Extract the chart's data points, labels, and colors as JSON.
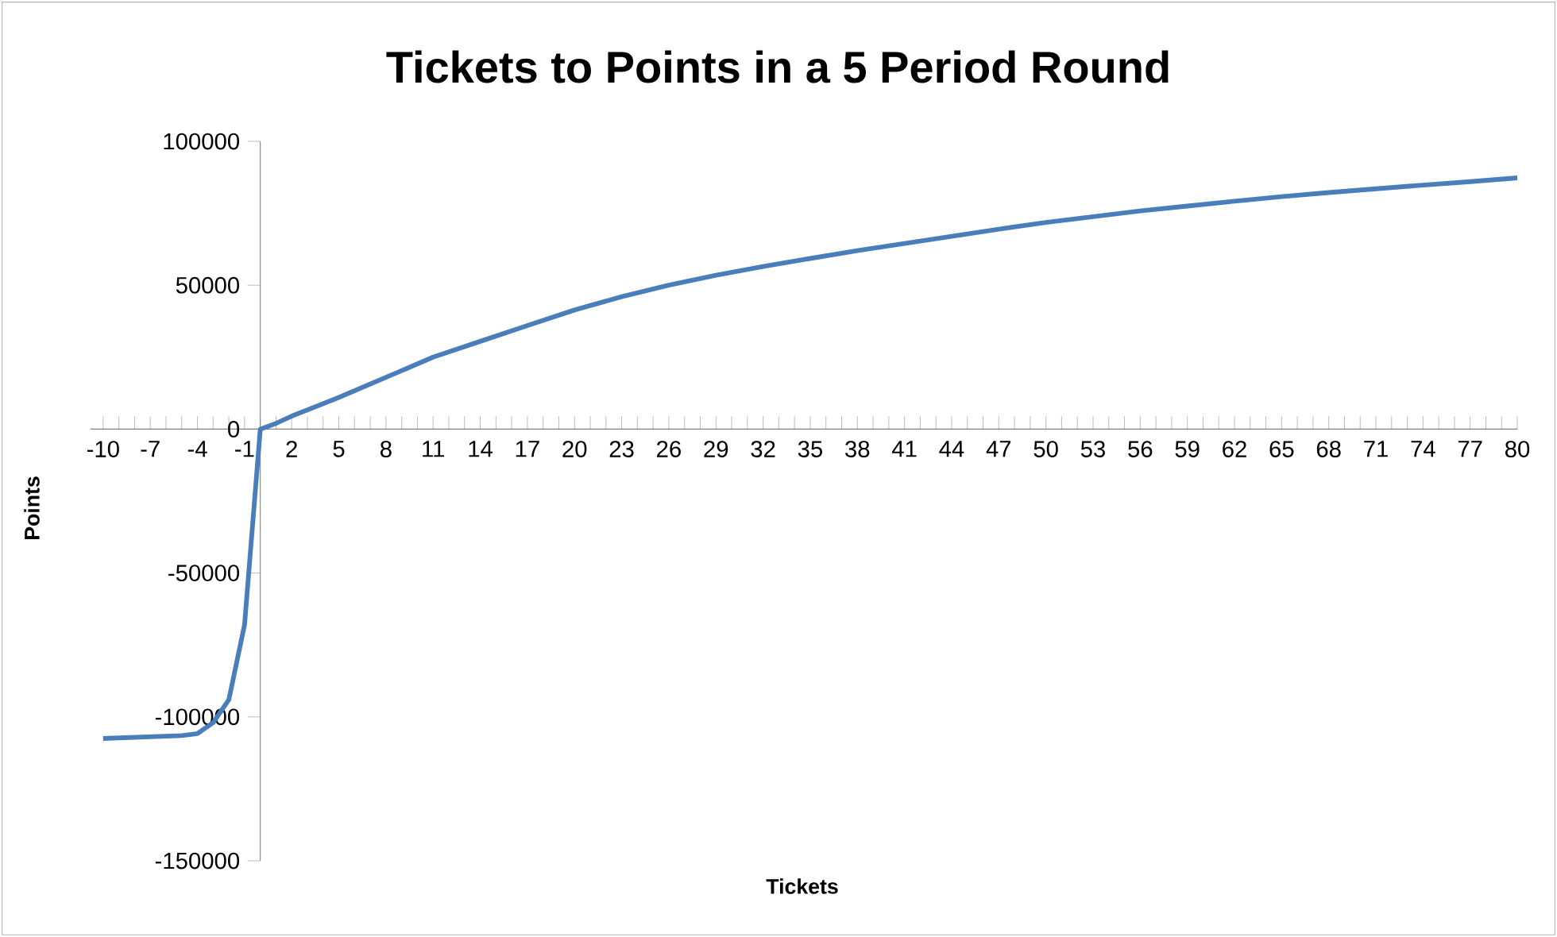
{
  "chart_data": {
    "type": "line",
    "title": "Tickets to Points in a 5 Period Round",
    "xlabel": "Tickets",
    "ylabel": "Points",
    "x": [
      -10,
      -5,
      -4,
      -3,
      -2,
      -1,
      0,
      1,
      2,
      5,
      8,
      11,
      14,
      17,
      20,
      23,
      26,
      29,
      32,
      35,
      38,
      41,
      44,
      47,
      50,
      53,
      56,
      59,
      62,
      65,
      68,
      71,
      74,
      77,
      80
    ],
    "series": [
      {
        "color": "#4a7ebb",
        "values": [
          -107500,
          -106500,
          -105800,
          -102000,
          -94000,
          -68000,
          0,
          2000,
          4500,
          11000,
          18000,
          25000,
          30500,
          36000,
          41400,
          46000,
          50000,
          53500,
          56500,
          59300,
          62000,
          64500,
          67000,
          69500,
          71800,
          73800,
          75800,
          77500,
          79200,
          80800,
          82200,
          83500,
          84800,
          86000,
          87300
        ]
      }
    ],
    "marker": "none",
    "xlim": [
      -10.8,
      80
    ],
    "ylim": [
      -150000,
      100000
    ],
    "xticks": [
      -10,
      -7,
      -4,
      -1,
      2,
      5,
      8,
      11,
      14,
      17,
      20,
      23,
      26,
      29,
      32,
      35,
      38,
      41,
      44,
      47,
      50,
      53,
      56,
      59,
      62,
      65,
      68,
      71,
      74,
      77,
      80
    ],
    "yticks": [
      -150000,
      -100000,
      -50000,
      0,
      50000,
      100000
    ]
  }
}
